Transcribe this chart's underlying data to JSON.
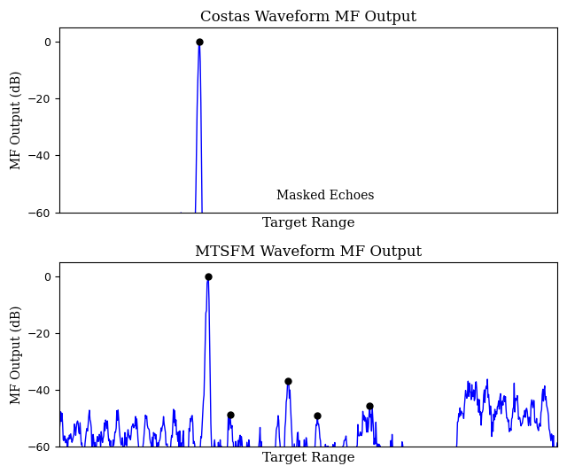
{
  "title1": "Costas Waveform MF Output",
  "title2": "MTSFM Waveform MF Output",
  "xlabel": "Target Range",
  "ylabel": "MF Output (dB)",
  "ylim": [
    -60,
    5
  ],
  "yticks": [
    0,
    -20,
    -40,
    -60
  ],
  "line_color": "#0000FF",
  "line_width": 1.0,
  "dot_color": "black",
  "dot_size": 5,
  "annotation_text": "Masked Echoes",
  "annotation_fontsize": 10,
  "bg_color": "white",
  "fig_width": 6.4,
  "fig_height": 5.35
}
